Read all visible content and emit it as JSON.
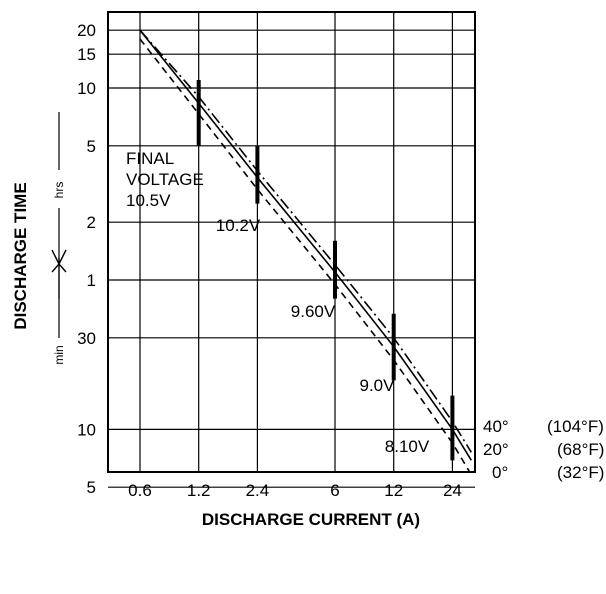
{
  "chart_data": {
    "type": "line",
    "xlabel": "DISCHARGE CURRENT (A)",
    "ylabel": "DISCHARGE TIME",
    "x_scale": "log",
    "y_scale": "log",
    "x_ticks": [
      "0.6",
      "1.2",
      "2.4",
      "6",
      "12",
      "24"
    ],
    "y_ticks_hours": [
      "20",
      "15",
      "10",
      "5",
      "2",
      "1"
    ],
    "y_ticks_minutes": [
      "30",
      "10",
      "5"
    ],
    "y_unit_hours": "hrs",
    "y_unit_minutes": "min",
    "final_voltage_note": [
      "FINAL",
      "VOLTAGE",
      "10.5V"
    ],
    "series": [
      {
        "name": "40°",
        "fahrenheit": "(104°F)",
        "line_style": "dash-dot",
        "points": [
          [
            0.6,
            1200
          ],
          [
            1.2,
            540
          ],
          [
            2.4,
            222
          ],
          [
            6,
            72
          ],
          [
            12,
            30
          ],
          [
            24,
            11
          ],
          [
            30,
            7.6
          ]
        ]
      },
      {
        "name": "20°",
        "fahrenheit": "(68°F)",
        "line_style": "solid",
        "points": [
          [
            0.6,
            1200
          ],
          [
            1.2,
            500
          ],
          [
            2.4,
            205
          ],
          [
            6,
            66
          ],
          [
            12,
            27
          ],
          [
            24,
            10
          ],
          [
            30,
            6.9
          ]
        ]
      },
      {
        "name": "0°",
        "fahrenheit": "(32°F)",
        "line_style": "dashed",
        "points": [
          [
            0.6,
            1080
          ],
          [
            1.2,
            440
          ],
          [
            2.4,
            178
          ],
          [
            6,
            57
          ],
          [
            12,
            23
          ],
          [
            24,
            8.5
          ],
          [
            30,
            5.8
          ]
        ]
      }
    ],
    "voltage_markers": [
      {
        "x": 1.2,
        "label": "10.5V",
        "y_top": 660,
        "y_bottom": 300
      },
      {
        "x": 2.4,
        "label": "10.2V",
        "y_top": 300,
        "y_bottom": 150
      },
      {
        "x": 6,
        "label": "9.60V",
        "y_top": 96,
        "y_bottom": 48
      },
      {
        "x": 12,
        "label": "9.0V",
        "y_top": 40,
        "y_bottom": 18
      },
      {
        "x": 24,
        "label": "8.10V",
        "y_top": 15,
        "y_bottom": 6.9
      }
    ]
  }
}
